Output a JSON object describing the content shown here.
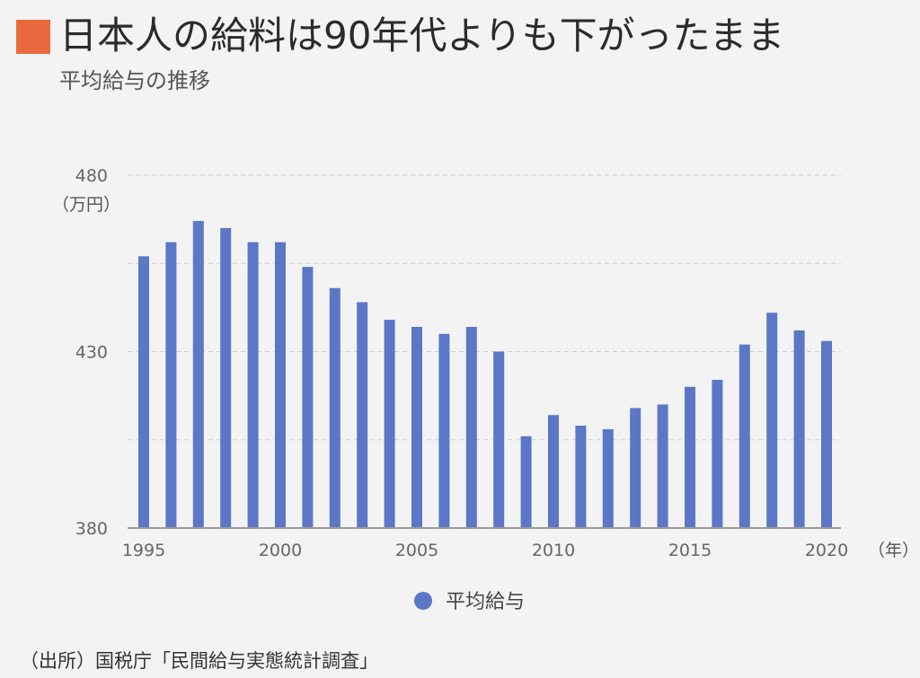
{
  "header": {
    "title": "日本人の給料は90年代よりも下がったまま",
    "subtitle": "平均給与の推移",
    "accent_color": "#e8693e"
  },
  "chart_data": {
    "type": "bar",
    "x": [
      1995,
      1996,
      1997,
      1998,
      1999,
      2000,
      2001,
      2002,
      2003,
      2004,
      2005,
      2006,
      2007,
      2008,
      2009,
      2010,
      2011,
      2012,
      2013,
      2014,
      2015,
      2016,
      2017,
      2018,
      2019,
      2020
    ],
    "values": [
      457,
      461,
      467,
      465,
      461,
      461,
      454,
      448,
      444,
      439,
      437,
      435,
      437,
      430,
      406,
      412,
      409,
      408,
      414,
      415,
      420,
      422,
      432,
      441,
      436,
      433
    ],
    "xticks": [
      "1995",
      "2000",
      "2005",
      "2010",
      "2015",
      "2020"
    ],
    "yticks": [
      "480",
      "430",
      "380"
    ],
    "ylim": [
      380,
      480
    ],
    "ylabel": "（万円）",
    "xlabel": "（年）",
    "legend": [
      "平均給与"
    ],
    "legend_position": "bottom",
    "bar_color": "#5b77c6",
    "grid": true
  },
  "source": "（出所）国税庁「民間給与実態統計調査」"
}
